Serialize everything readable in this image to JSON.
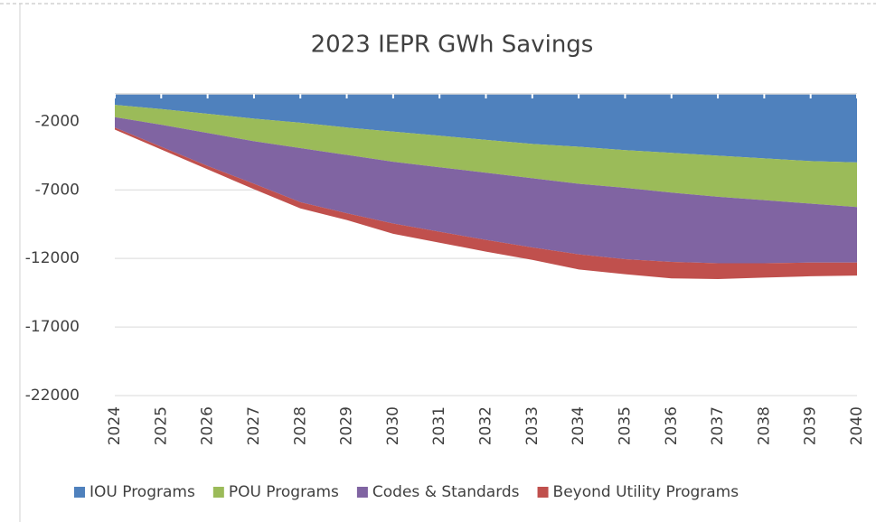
{
  "chart_data": {
    "type": "stacked_area",
    "title": "2023 IEPR GWh Savings",
    "categories": [
      "2024",
      "2025",
      "2026",
      "2027",
      "2028",
      "2029",
      "2030",
      "2031",
      "2032",
      "2033",
      "2034",
      "2035",
      "2036",
      "2037",
      "2038",
      "2039",
      "2040"
    ],
    "series": [
      {
        "name": "IOU Programs",
        "color": "#4f81bd",
        "values": [
          -800,
          -1100,
          -1450,
          -1800,
          -2100,
          -2450,
          -2750,
          -3050,
          -3350,
          -3650,
          -3850,
          -4100,
          -4300,
          -4500,
          -4700,
          -4900,
          -5000
        ]
      },
      {
        "name": "POU Programs",
        "color": "#9bbb59",
        "values": [
          -900,
          -1150,
          -1400,
          -1650,
          -1850,
          -2000,
          -2200,
          -2300,
          -2400,
          -2500,
          -2700,
          -2750,
          -2900,
          -3000,
          -3050,
          -3100,
          -3250
        ]
      },
      {
        "name": "Codes & Standards",
        "color": "#8064a2",
        "values": [
          -750,
          -1600,
          -2400,
          -3100,
          -3950,
          -4250,
          -4500,
          -4700,
          -4900,
          -5050,
          -5150,
          -5200,
          -5050,
          -4850,
          -4600,
          -4300,
          -4050
        ]
      },
      {
        "name": "Beyond Utility Programs",
        "color": "#c0504d",
        "values": [
          -150,
          -200,
          -250,
          -400,
          -450,
          -500,
          -750,
          -800,
          -850,
          -900,
          -1100,
          -1100,
          -1200,
          -1150,
          -1050,
          -1000,
          -950
        ]
      }
    ],
    "ylim": [
      -22000,
      0
    ],
    "yticks": [
      -22000,
      -17000,
      -12000,
      -7000,
      -2000
    ],
    "grid": true,
    "legend": "bottom"
  }
}
